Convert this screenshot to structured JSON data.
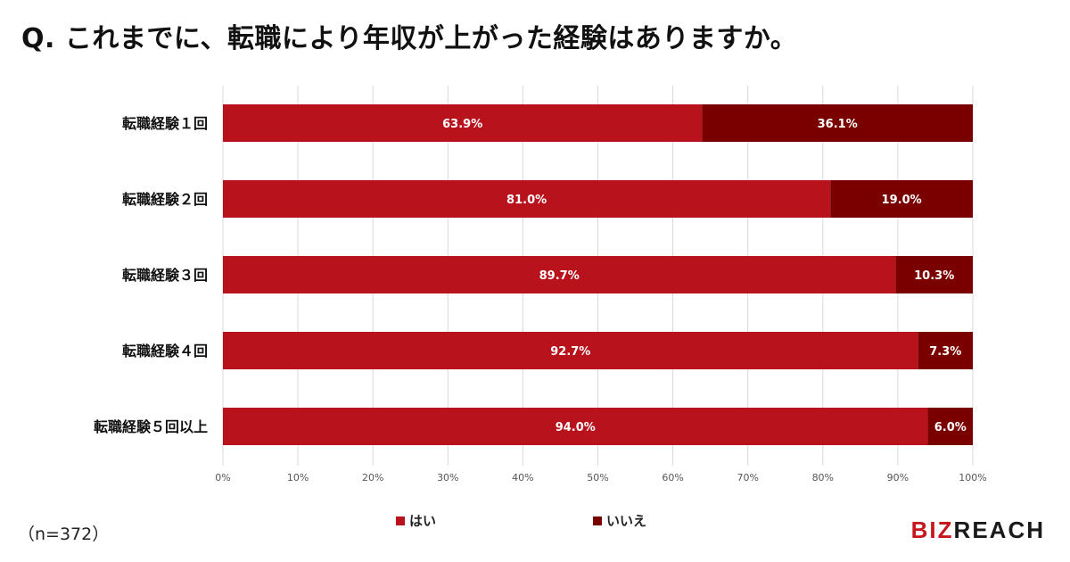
{
  "title": "Q. これまでに、転職により年収が上がった経験はありますか。",
  "note": "（n=372）",
  "logo": {
    "part1": "BIZ",
    "part2": "REACH"
  },
  "colors": {
    "yes": "#b8131c",
    "no": "#7a0000",
    "grid": "#d8d8d8"
  },
  "chart_data": {
    "type": "bar",
    "orientation": "horizontal",
    "stacked": true,
    "categories": [
      "転職経験１回",
      "転職経験２回",
      "転職経験３回",
      "転職経験４回",
      "転職経験５回以上"
    ],
    "series": [
      {
        "name": "はい",
        "values": [
          63.9,
          81.0,
          89.7,
          92.7,
          94.0
        ],
        "labels": [
          "63.9%",
          "81.0%",
          "89.7%",
          "92.7%",
          "94.0%"
        ]
      },
      {
        "name": "いいえ",
        "values": [
          36.1,
          19.0,
          10.3,
          7.3,
          6.0
        ],
        "labels": [
          "36.1%",
          "19.0%",
          "10.3%",
          "7.3%",
          "6.0%"
        ]
      }
    ],
    "xlim": [
      0,
      100
    ],
    "xticks": [
      "0%",
      "10%",
      "20%",
      "30%",
      "40%",
      "50%",
      "60%",
      "70%",
      "80%",
      "90%",
      "100%"
    ],
    "grid": "vertical",
    "legend_position": "bottom"
  }
}
